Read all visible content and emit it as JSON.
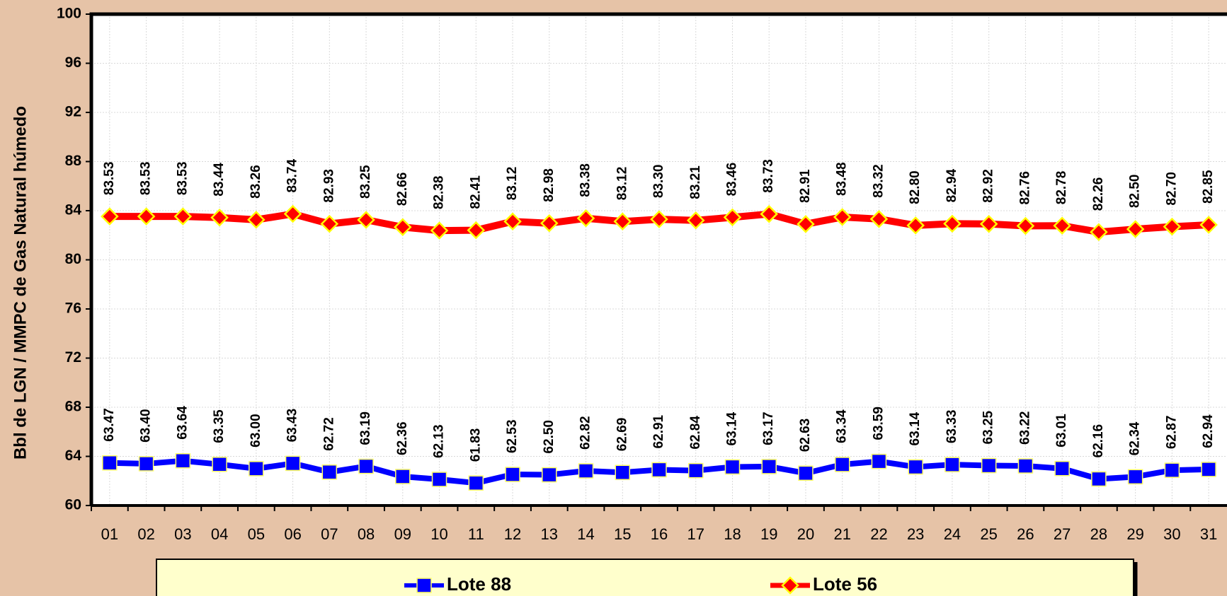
{
  "chart_data": {
    "type": "line",
    "y_label": "Bbl de LGN / MMPC de Gas Natural húmedo",
    "categories": [
      "01",
      "02",
      "03",
      "04",
      "05",
      "06",
      "07",
      "08",
      "09",
      "10",
      "11",
      "12",
      "13",
      "14",
      "15",
      "16",
      "17",
      "18",
      "19",
      "20",
      "21",
      "22",
      "23",
      "24",
      "25",
      "26",
      "27",
      "28",
      "29",
      "30",
      "31"
    ],
    "series": [
      {
        "name": "Lote 88",
        "color": "#0000ff",
        "marker": "square",
        "values": [
          63.47,
          63.4,
          63.64,
          63.35,
          63.0,
          63.43,
          62.72,
          63.19,
          62.36,
          62.13,
          61.83,
          62.53,
          62.5,
          62.82,
          62.69,
          62.91,
          62.84,
          63.14,
          63.17,
          62.63,
          63.34,
          63.59,
          63.14,
          63.33,
          63.25,
          63.22,
          63.01,
          62.16,
          62.34,
          62.87,
          62.94
        ],
        "value_labels": [
          "63.47",
          "63.40",
          "63.64",
          "63.35",
          "63.00",
          "63.43",
          "62.72",
          "63.19",
          "62.36",
          "62.13",
          "61.83",
          "62.53",
          "62.50",
          "62.82",
          "62.69",
          "62.91",
          "62.84",
          "63.14",
          "63.17",
          "62.63",
          "63.34",
          "63.59",
          "63.14",
          "63.33",
          "63.25",
          "63.22",
          "63.01",
          "62.16",
          "62.34",
          "62.87",
          "62.94"
        ]
      },
      {
        "name": "Lote 56",
        "color": "#ff0000",
        "marker": "diamond",
        "values": [
          83.53,
          83.53,
          83.53,
          83.44,
          83.26,
          83.74,
          82.93,
          83.25,
          82.66,
          82.38,
          82.41,
          83.12,
          82.98,
          83.38,
          83.12,
          83.3,
          83.21,
          83.46,
          83.73,
          82.91,
          83.48,
          83.32,
          82.8,
          82.94,
          82.92,
          82.76,
          82.78,
          82.26,
          82.5,
          82.7,
          82.85
        ],
        "value_labels": [
          "83.53",
          "83.53",
          "83.53",
          "83.44",
          "83.26",
          "83.74",
          "82.93",
          "83.25",
          "82.66",
          "82.38",
          "82.41",
          "83.12",
          "82.98",
          "83.38",
          "83.12",
          "83.30",
          "83.21",
          "83.46",
          "83.73",
          "82.91",
          "83.48",
          "83.32",
          "82.80",
          "82.94",
          "82.92",
          "82.76",
          "82.78",
          "82.26",
          "82.50",
          "82.70",
          "82.85"
        ]
      }
    ],
    "ylim": [
      60,
      100
    ],
    "yticks": [
      60,
      64,
      68,
      72,
      76,
      80,
      84,
      88,
      92,
      96,
      100
    ],
    "grid": true,
    "legend": "bottom"
  }
}
